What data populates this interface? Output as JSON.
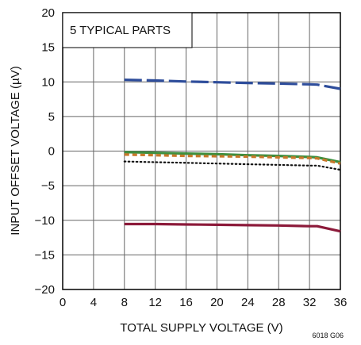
{
  "chart_data": {
    "type": "line",
    "title": "",
    "xlabel": "TOTAL SUPPLY VOLTAGE (V)",
    "ylabel": "INPUT OFFSET VOLTAGE (µV)",
    "xlim": [
      0,
      36
    ],
    "ylim": [
      -20,
      20
    ],
    "x_ticks": [
      "0",
      "4",
      "8",
      "12",
      "16",
      "20",
      "24",
      "28",
      "32",
      "36"
    ],
    "y_ticks": [
      "20",
      "15",
      "10",
      "5",
      "0",
      "−5",
      "−10",
      "−15",
      "−20"
    ],
    "grid": true,
    "annotation": "5 TYPICAL PARTS",
    "figure_id": "6018 G06",
    "series": [
      {
        "color": "#2e4d9b",
        "dash": "long-dash",
        "x": [
          8,
          12,
          16,
          20,
          24,
          28,
          32,
          33,
          36
        ],
        "y": [
          10.3,
          10.2,
          10.05,
          9.95,
          9.85,
          9.75,
          9.65,
          9.6,
          9.0
        ]
      },
      {
        "color": "#3e8e3e",
        "dash": "solid",
        "x": [
          8,
          12,
          16,
          20,
          24,
          28,
          32,
          33,
          36
        ],
        "y": [
          -0.15,
          -0.25,
          -0.35,
          -0.45,
          -0.6,
          -0.7,
          -0.85,
          -0.9,
          -1.6
        ]
      },
      {
        "color": "#c8782a",
        "dash": "short-dash",
        "x": [
          8,
          12,
          16,
          20,
          24,
          28,
          32,
          33,
          36
        ],
        "y": [
          -0.5,
          -0.6,
          -0.7,
          -0.75,
          -0.8,
          -0.9,
          -1.0,
          -1.05,
          -1.8
        ]
      },
      {
        "color": "#111111",
        "dash": "dotted",
        "x": [
          8,
          12,
          16,
          20,
          24,
          28,
          32,
          33,
          36
        ],
        "y": [
          -1.5,
          -1.6,
          -1.7,
          -1.8,
          -1.9,
          -2.0,
          -2.1,
          -2.1,
          -2.7
        ]
      },
      {
        "color": "#8c1a3a",
        "dash": "solid",
        "x": [
          8,
          12,
          16,
          20,
          24,
          28,
          32,
          33,
          36
        ],
        "y": [
          -10.55,
          -10.55,
          -10.6,
          -10.65,
          -10.7,
          -10.75,
          -10.85,
          -10.85,
          -11.6
        ]
      }
    ]
  }
}
